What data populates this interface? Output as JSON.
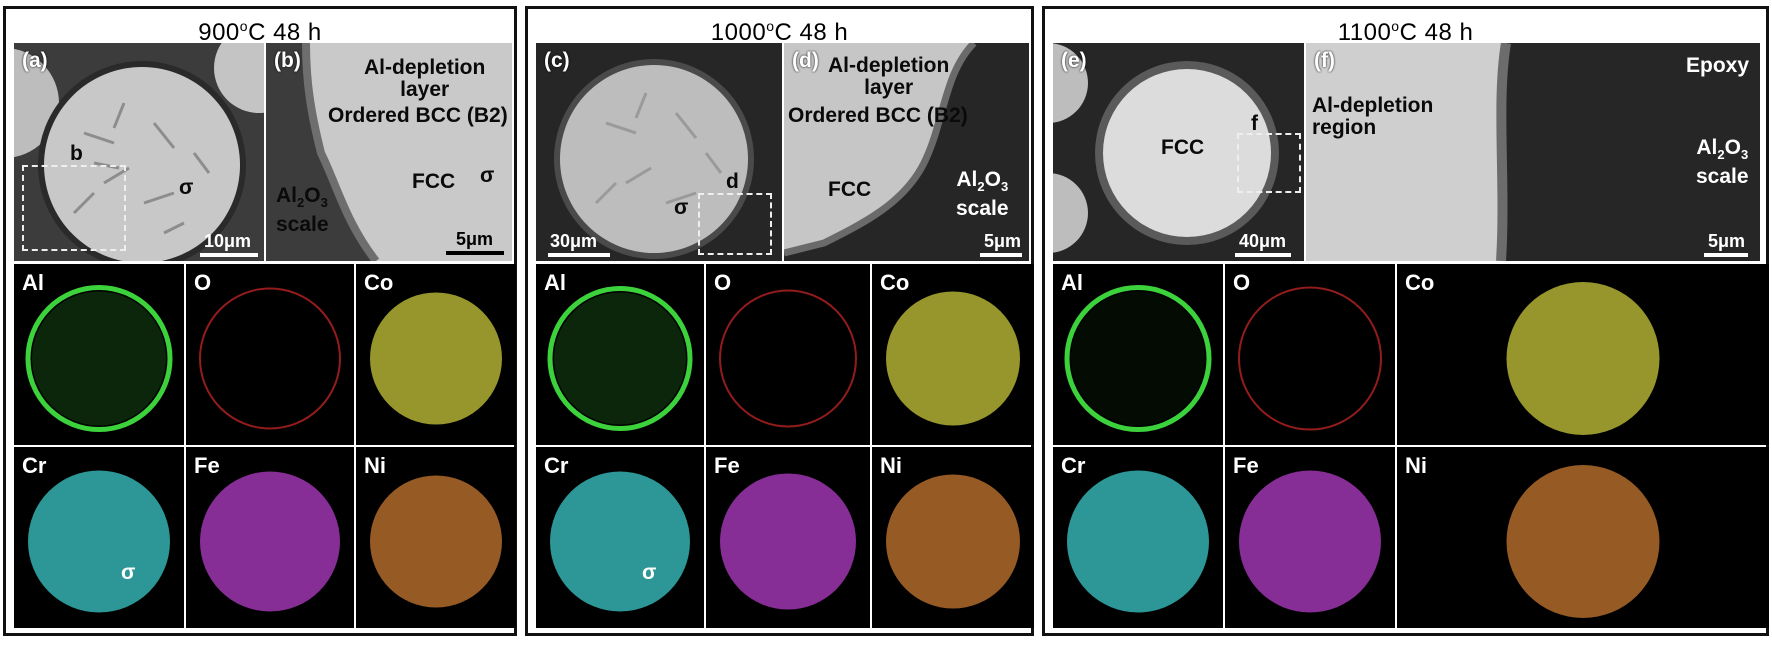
{
  "groups": [
    {
      "title_temp": "900",
      "title_unit": "C  48 h",
      "degree": "o",
      "panels": [
        {
          "label": "(a)",
          "box_label": "b",
          "sigma": "σ",
          "scale": "10μm"
        },
        {
          "label": "(b)",
          "ann_depl": "Al-depletion\nlayer",
          "ann_b2": "Ordered BCC (B2)",
          "ann_sigma": "σ",
          "ann_fcc": "FCC",
          "ann_al2o3": "Al",
          "sub2": "2",
          "o": "O",
          "sub3": "3",
          "scale_word": "scale",
          "scale": "5μm"
        }
      ],
      "maps": [
        "Al",
        "O",
        "Co",
        "Cr",
        "Fe",
        "Ni"
      ],
      "map_sigma": "σ"
    },
    {
      "title_temp": "1000",
      "title_unit": "C  48 h",
      "degree": "o",
      "panels": [
        {
          "label": "(c)",
          "box_label": "d",
          "sigma": "σ",
          "scale": "30μm"
        },
        {
          "label": "(d)",
          "ann_depl": "Al-depletion\nlayer",
          "ann_b2": "Ordered BCC (B2)",
          "ann_fcc": "FCC",
          "ann_al2o3": "Al",
          "sub2": "2",
          "o": "O",
          "sub3": "3",
          "scale_word": "scale",
          "scale": "5μm"
        }
      ],
      "maps": [
        "Al",
        "O",
        "Co",
        "Cr",
        "Fe",
        "Ni"
      ],
      "map_sigma": "σ"
    },
    {
      "title_temp": "1100",
      "title_unit": "C  48 h",
      "degree": "o",
      "panels": [
        {
          "label": "(e)",
          "box_label": "f",
          "fcc": "FCC",
          "scale": "40μm"
        },
        {
          "label": "(f)",
          "epoxy": "Epoxy",
          "ann_depl": "Al-depletion\nregion",
          "ann_al2o3": "Al",
          "sub2": "2",
          "o": "O",
          "sub3": "3",
          "scale_word": "scale",
          "scale": "5μm"
        }
      ],
      "maps": [
        "Al",
        "O",
        "Co",
        "Cr",
        "Fe",
        "Ni"
      ]
    }
  ],
  "colors": {
    "Al": "#3cd23c",
    "O": "#d22828",
    "Co": "#c8c83c",
    "Cr": "#3cc8c8",
    "Fe": "#b43cc8",
    "Ni": "#c87832"
  }
}
